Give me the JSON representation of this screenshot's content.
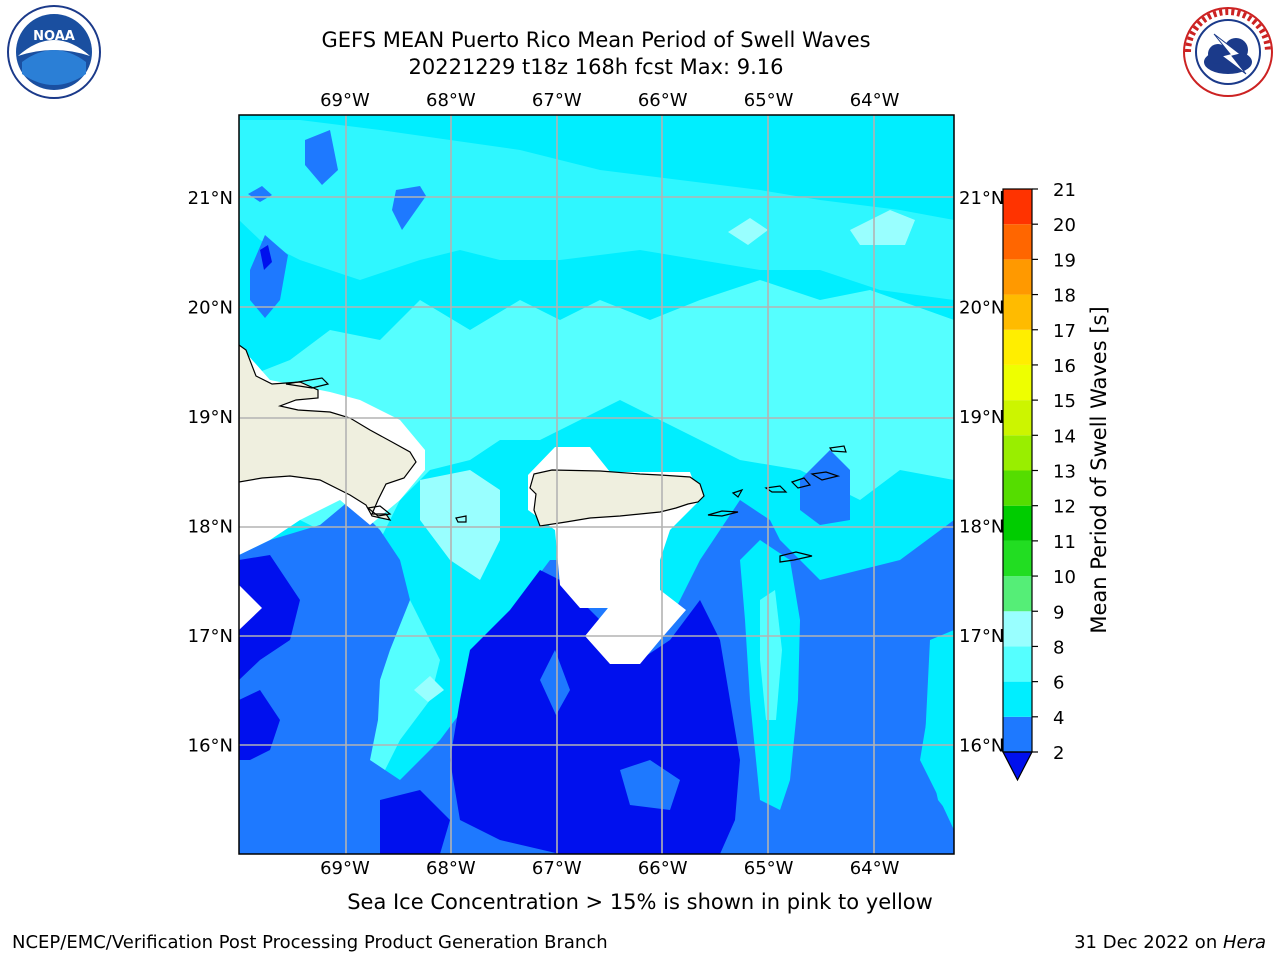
{
  "title": {
    "line1": "GEFS MEAN Puerto Rico Mean Period of Swell Waves",
    "line2": "20221229 t18z 168h fcst   Max: 9.16"
  },
  "logos": {
    "left": "noaa-logo",
    "left_text": "NOAA",
    "right": "nws-logo",
    "right_text": "NATIONAL WEATHER SERVICE"
  },
  "axes": {
    "lon_labels": [
      "69°W",
      "68°W",
      "67°W",
      "66°W",
      "65°W",
      "64°W"
    ],
    "lat_labels": [
      "21°N",
      "20°N",
      "19°N",
      "18°N",
      "17°N",
      "16°N"
    ],
    "lon_range": [
      -70.0,
      -63.25
    ],
    "lat_range": [
      15.0,
      21.75
    ]
  },
  "colorbar": {
    "title": "Mean Period of Swell Waves [s]",
    "ticks": [
      "2",
      "4",
      "6",
      "8",
      "9",
      "10",
      "11",
      "12",
      "13",
      "14",
      "15",
      "16",
      "17",
      "18",
      "19",
      "20",
      "21"
    ],
    "colors": [
      "#1e79ff",
      "#00eeff",
      "#55ffff",
      "#99ffff",
      "#55ee77",
      "#22dd22",
      "#00cc00",
      "#55dd00",
      "#99ee00",
      "#ccf500",
      "#eeff00",
      "#ffee00",
      "#ffbb00",
      "#ff9900",
      "#ff6600",
      "#ff3300",
      "#ff0000"
    ],
    "under_color": "#0010ee"
  },
  "map_colors": {
    "very_low": "#0010ee",
    "low": "#1e79ff",
    "mid": "#00eeff",
    "high": "#55ffff",
    "higher": "#99ffff",
    "land": "#efefdf",
    "nodata": "#ffffff",
    "grid": "#b3b3b3"
  },
  "note": "Sea Ice Concentration > 15% is shown in pink to yellow",
  "footer": {
    "left": "NCEP/EMC/Verification Post Processing Product Generation Branch",
    "right_date": "31 Dec 2022 on ",
    "right_host": "Hera"
  }
}
